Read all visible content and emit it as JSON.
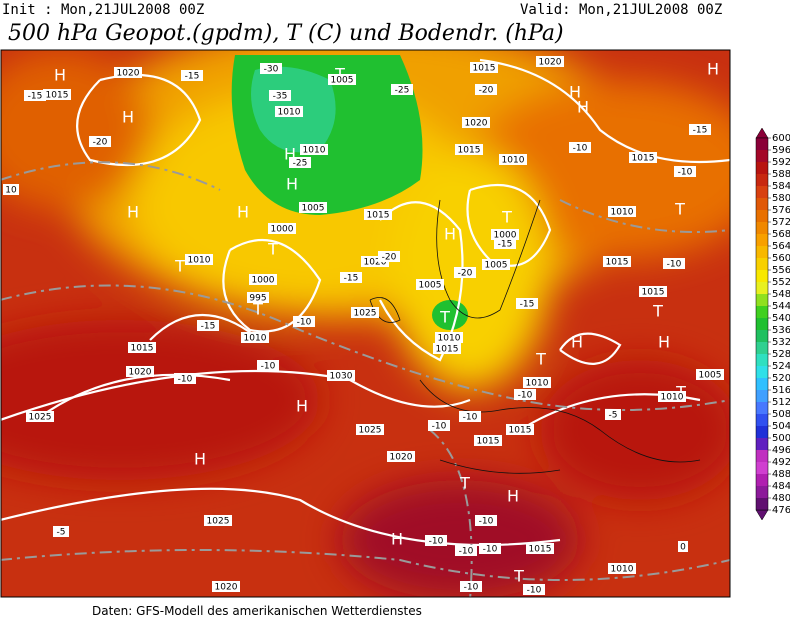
{
  "header": {
    "init": "Init : Mon,21JUL2008 00Z",
    "valid": "Valid: Mon,21JUL2008 00Z",
    "title": "500 hPa Geopot.(gpdm), T (C) und Bodendr. (hPa)"
  },
  "footer": "Daten: GFS-Modell des amerikanischen Wetterdienstes",
  "colorbar": {
    "ticks": [
      600,
      596,
      592,
      588,
      584,
      580,
      576,
      572,
      568,
      564,
      560,
      556,
      552,
      548,
      544,
      540,
      536,
      532,
      528,
      524,
      520,
      516,
      512,
      508,
      504,
      500,
      496,
      492,
      488,
      484,
      480,
      476
    ],
    "colors": [
      "#8a0038",
      "#a40828",
      "#b81410",
      "#c82810",
      "#d84010",
      "#e05808",
      "#e87000",
      "#f08800",
      "#f8a000",
      "#f8b800",
      "#f8d000",
      "#f8e800",
      "#e8f020",
      "#90e020",
      "#40d020",
      "#20c030",
      "#20c060",
      "#30d090",
      "#30e0c0",
      "#30e0e8",
      "#30c0ff",
      "#40a0ff",
      "#4878ff",
      "#3050f0",
      "#2030d8",
      "#6020c0",
      "#c030c0",
      "#d040d0",
      "#b020b0",
      "#8c1a9a",
      "#601070"
    ]
  },
  "map": {
    "pressure_centers": [
      "H",
      "H",
      "H",
      "H",
      "H",
      "H",
      "H",
      "H",
      "H",
      "H",
      "H",
      "H",
      "H",
      "H",
      "H",
      "H",
      "T",
      "T",
      "T",
      "T",
      "T",
      "T",
      "T",
      "T",
      "T",
      "T",
      "T",
      "T"
    ],
    "isobar_labels": [
      "1020",
      "1015",
      "1010",
      "1000",
      "995",
      "1010",
      "1015",
      "1020",
      "1025",
      "1030",
      "1025",
      "1025",
      "1020",
      "1025",
      "1020",
      "1015",
      "1020",
      "1005",
      "1010",
      "1015",
      "1015",
      "1015",
      "1010",
      "1010",
      "1015",
      "1005",
      "1010",
      "1010",
      "1005",
      "1000",
      "1015",
      "1020",
      "1020",
      "1015",
      "1010",
      "1015",
      "1010",
      "1000",
      "1005",
      "1015",
      "1015",
      "1010",
      "1005",
      "10"
    ],
    "temperature_labels": [
      "-15",
      "-30",
      "-35",
      "-25",
      "-20",
      "-15",
      "-25",
      "-20",
      "-15",
      "-15",
      "-10",
      "-10",
      "-10",
      "-20",
      "-15",
      "-10",
      "-15",
      "-20",
      "-15",
      "-10",
      "-10",
      "-10",
      "-10",
      "-10",
      "-10",
      "-10",
      "-10",
      "-10",
      "-10",
      "-10",
      "-5",
      "-5",
      "0"
    ]
  }
}
